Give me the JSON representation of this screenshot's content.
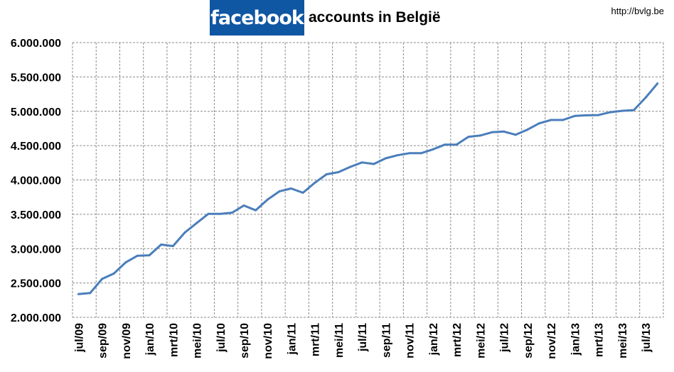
{
  "header": {
    "logo_text": "facebook",
    "title": "accounts in België",
    "url": "http://bvlg.be"
  },
  "colors": {
    "line": "#4a7ebb",
    "logo_bg": "#0f56a3",
    "grid": "#8c8c8c"
  },
  "chart_data": {
    "type": "line",
    "title": "facebook accounts in België",
    "xlabel": "",
    "ylabel": "",
    "ylim": [
      2000000,
      6000000
    ],
    "ytick_step": 500000,
    "ytick_labels": [
      "2.000.000",
      "2.500.000",
      "3.000.000",
      "3.500.000",
      "4.000.000",
      "4.500.000",
      "5.000.000",
      "5.500.000",
      "6.000.000"
    ],
    "grid": true,
    "legend": "none",
    "x_tick_labels": [
      "jul/09",
      "sep/09",
      "nov/09",
      "jan/10",
      "mrt/10",
      "mei/10",
      "jul/10",
      "sep/10",
      "nov/10",
      "jan/11",
      "mrt/11",
      "mei/11",
      "jul/11",
      "sep/11",
      "nov/11",
      "jan/12",
      "mrt/12",
      "mei/12",
      "jul/12",
      "sep/12",
      "nov/12",
      "jan/13",
      "mrt/13",
      "mei/13",
      "jul/13"
    ],
    "x": [
      "jul/09",
      "aug/09",
      "sep/09",
      "okt/09",
      "nov/09",
      "dec/09",
      "jan/10",
      "feb/10",
      "mrt/10",
      "apr/10",
      "mei/10",
      "jun/10",
      "jul/10",
      "aug/10",
      "sep/10",
      "okt/10",
      "nov/10",
      "dec/10",
      "jan/11",
      "feb/11",
      "mrt/11",
      "apr/11",
      "mei/11",
      "jun/11",
      "jul/11",
      "aug/11",
      "sep/11",
      "okt/11",
      "nov/11",
      "dec/11",
      "jan/12",
      "feb/12",
      "mrt/12",
      "apr/12",
      "mei/12",
      "jun/12",
      "jul/12",
      "aug/12",
      "sep/12",
      "okt/12",
      "nov/12",
      "dec/12",
      "jan/13",
      "feb/13",
      "mrt/13",
      "apr/13",
      "mei/13",
      "jun/13",
      "jul/13",
      "aug/13"
    ],
    "series": [
      {
        "name": "facebook accounts",
        "values": [
          2338000,
          2355000,
          2559000,
          2638000,
          2800000,
          2897000,
          2903000,
          3059000,
          3038000,
          3234000,
          3372000,
          3507000,
          3507000,
          3524000,
          3628000,
          3559000,
          3714000,
          3834000,
          3876000,
          3814000,
          3959000,
          4083000,
          4114000,
          4190000,
          4255000,
          4233000,
          4315000,
          4360000,
          4390000,
          4390000,
          4445000,
          4514000,
          4514000,
          4627000,
          4647000,
          4695000,
          4705000,
          4658000,
          4733000,
          4825000,
          4873000,
          4873000,
          4932000,
          4942000,
          4945000,
          4986000,
          5007000,
          5017000,
          5199000,
          5404000
        ]
      }
    ]
  }
}
